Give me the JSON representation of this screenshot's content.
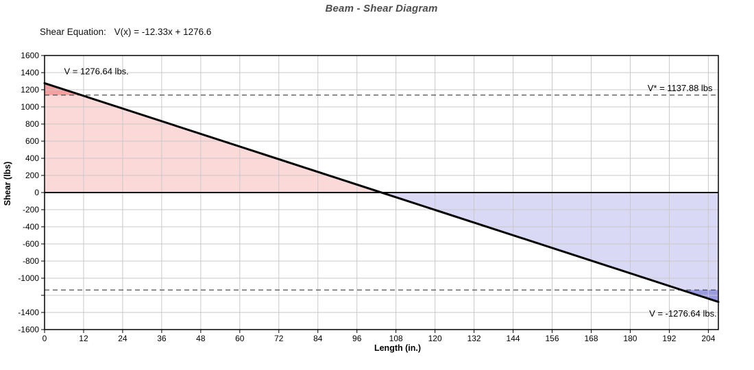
{
  "page": {
    "title": "Beam - Shear Diagram",
    "equation_label": "Shear Equation:",
    "equation_value": "V(x) = -12.33x + 1276.6"
  },
  "chart_data": {
    "type": "line",
    "title": "Beam - Shear Diagram",
    "xlabel": "Length (in.)",
    "ylabel": "Shear (lbs)",
    "xlim": [
      0,
      207.08
    ],
    "ylim": [
      -1600,
      1600
    ],
    "grid": true,
    "x_ticks": [
      0,
      12,
      24,
      36,
      48,
      60,
      72,
      84,
      96,
      108,
      120,
      132,
      144,
      156,
      168,
      180,
      192,
      204
    ],
    "y_ticks": [
      -1600,
      -1400,
      -1200,
      -1000,
      -800,
      -600,
      -400,
      -200,
      0,
      200,
      400,
      600,
      800,
      1000,
      1200,
      1400,
      1600
    ],
    "y_tick_labels_hidden": [
      -1200
    ],
    "series": [
      {
        "name": "shear-line",
        "x": [
          0,
          207.08
        ],
        "y": [
          1276.64,
          -1276.64
        ],
        "color": "#000000",
        "width": 3
      }
    ],
    "equation": {
      "expression": "V(x) = -12.33x + 1276.6",
      "slope": -12.33,
      "intercept": 1276.6
    },
    "key_values": {
      "v_start_lbs": 1276.64,
      "v_end_lbs": -1276.64,
      "v_allowable_lbs": 1137.88,
      "zero_crossing_in": 103.54,
      "beam_length_in": 207.08
    },
    "reference_lines": [
      {
        "name": "allowable-shear-line-positive",
        "y": 1137.88
      },
      {
        "name": "allowable-shear-line-negative",
        "y": -1137.88
      }
    ],
    "regions": [
      {
        "name": "positive-shear-area",
        "color": "#fcd9d9",
        "points": [
          [
            0,
            1276.64
          ],
          [
            103.54,
            0
          ],
          [
            0,
            0
          ]
        ]
      },
      {
        "name": "negative-shear-area",
        "color": "#d9d9f5",
        "points": [
          [
            103.54,
            0
          ],
          [
            207.08,
            -1276.64
          ],
          [
            207.08,
            0
          ]
        ]
      },
      {
        "name": "positive-overstress-area",
        "color": "#f3a0a0",
        "points": [
          [
            0,
            1276.64
          ],
          [
            11.25,
            1137.88
          ],
          [
            0,
            1137.88
          ]
        ]
      },
      {
        "name": "negative-overstress-area",
        "color": "#9b9bdf",
        "points": [
          [
            195.82,
            -1137.88
          ],
          [
            207.08,
            -1276.64
          ],
          [
            207.08,
            -1137.88
          ]
        ]
      }
    ],
    "annotations": [
      {
        "name": "v-start-label",
        "text": "V = 1276.64 lbs.",
        "x": 6,
        "y": 1380,
        "anchor": "start"
      },
      {
        "name": "v-allowable-label",
        "text": "V* = 1137.88 lbs",
        "x": 205.3,
        "y": 1184,
        "anchor": "end"
      },
      {
        "name": "v-end-label",
        "text": "V = -1276.64 lbs.",
        "x": 206.6,
        "y": -1448,
        "anchor": "end"
      }
    ],
    "colors": {
      "grid": "#c8c8c8",
      "axis": "#000000",
      "reference_line": "#4d4d4d",
      "positive_fill": "#fcd9d9",
      "positive_over_fill": "#f3a0a0",
      "negative_fill": "#d9d9f5",
      "negative_over_fill": "#9b9bdf",
      "title_text": "#4d4d4d"
    },
    "legend": null
  }
}
